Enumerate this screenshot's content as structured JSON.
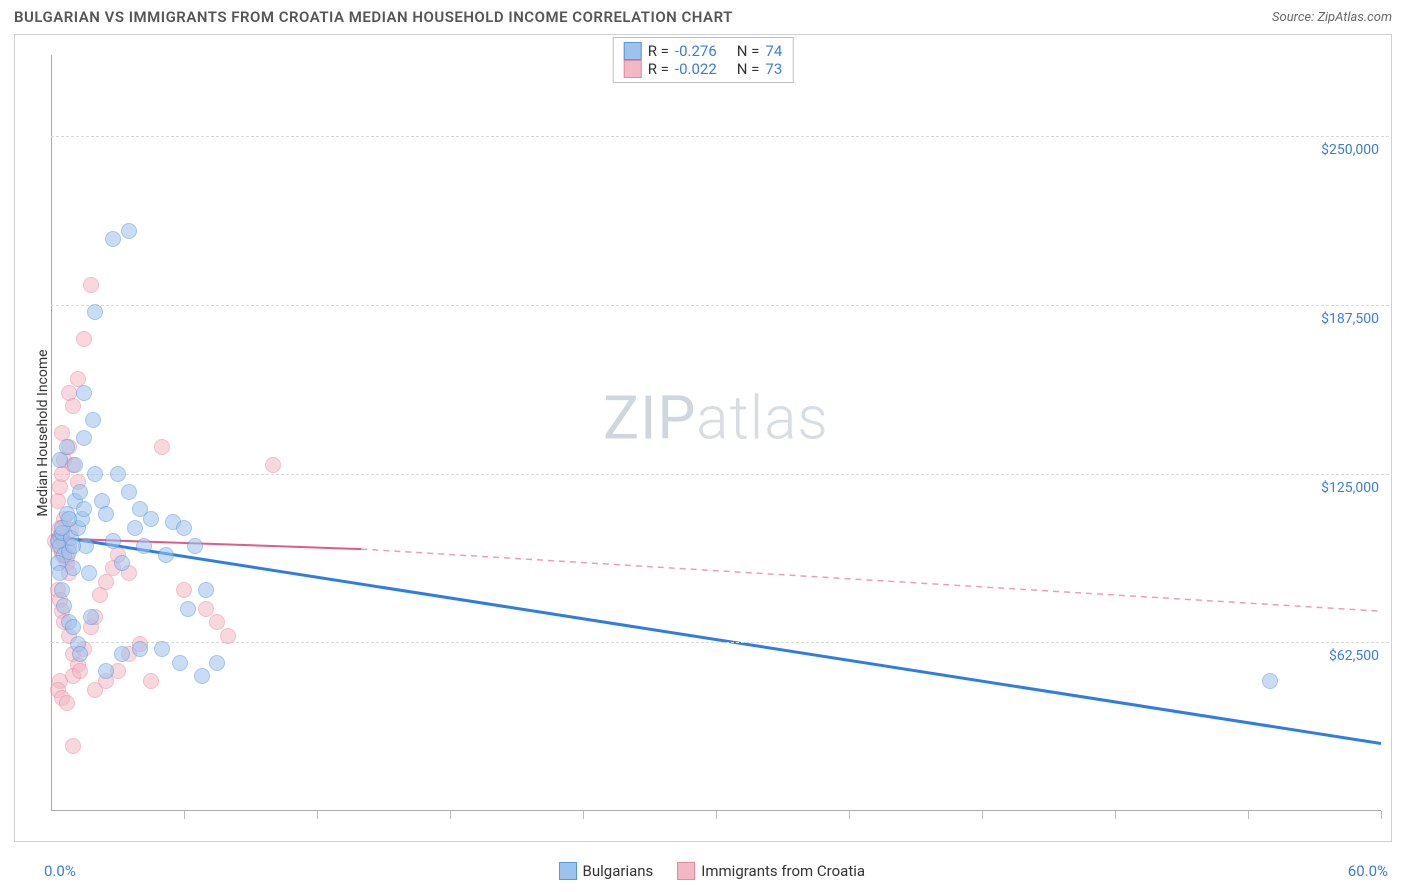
{
  "header": {
    "title": "BULGARIAN VS IMMIGRANTS FROM CROATIA MEDIAN HOUSEHOLD INCOME CORRELATION CHART",
    "source_prefix": "Source: ",
    "source": "ZipAtlas.com"
  },
  "watermark": {
    "part1": "ZIP",
    "part2": "atlas"
  },
  "chart": {
    "type": "scatter",
    "ylabel": "Median Household Income",
    "xlim": [
      0,
      60
    ],
    "ylim": [
      0,
      280000
    ],
    "x_left_label": "0.0%",
    "x_right_label": "60.0%",
    "xticks": [
      0,
      6,
      12,
      18,
      24,
      30,
      36,
      42,
      48,
      54,
      60
    ],
    "y_gridlines": [
      {
        "value": 62500,
        "label": "$62,500"
      },
      {
        "value": 125000,
        "label": "$125,000"
      },
      {
        "value": 187500,
        "label": "$187,500"
      },
      {
        "value": 250000,
        "label": "$250,000"
      }
    ],
    "grid_color": "#d8d8d8",
    "background_color": "#ffffff",
    "marker_radius": 8,
    "marker_opacity": 0.55
  },
  "series": {
    "blue": {
      "label": "Bulgarians",
      "fill": "#9cc3ee",
      "stroke": "#5a96d8",
      "r_label": "R =",
      "r_value": "-0.276",
      "n_label": "N =",
      "n_value": "74",
      "trend": {
        "x1": 0,
        "y1": 102000,
        "x2": 60,
        "y2": 25000,
        "color": "#2f7de1",
        "width": 3
      },
      "points": [
        [
          0.3,
          100000
        ],
        [
          0.4,
          98000
        ],
        [
          0.5,
          103000
        ],
        [
          0.6,
          95000
        ],
        [
          0.7,
          110000
        ],
        [
          0.8,
          96000
        ],
        [
          0.9,
          101000
        ],
        [
          1.0,
          90000
        ],
        [
          1.1,
          115000
        ],
        [
          1.2,
          105000
        ],
        [
          1.3,
          118000
        ],
        [
          1.4,
          108000
        ],
        [
          1.5,
          112000
        ],
        [
          1.6,
          98000
        ],
        [
          1.7,
          88000
        ],
        [
          1.8,
          72000
        ],
        [
          1.9,
          145000
        ],
        [
          2.0,
          125000
        ],
        [
          0.5,
          82000
        ],
        [
          0.6,
          76000
        ],
        [
          0.8,
          70000
        ],
        [
          1.0,
          68000
        ],
        [
          1.2,
          62000
        ],
        [
          1.3,
          58000
        ],
        [
          0.4,
          130000
        ],
        [
          0.7,
          135000
        ],
        [
          1.1,
          128000
        ],
        [
          1.5,
          138000
        ],
        [
          2.3,
          115000
        ],
        [
          2.5,
          110000
        ],
        [
          2.8,
          100000
        ],
        [
          3.2,
          92000
        ],
        [
          3.0,
          125000
        ],
        [
          3.5,
          118000
        ],
        [
          3.8,
          105000
        ],
        [
          4.2,
          98000
        ],
        [
          4.0,
          112000
        ],
        [
          4.5,
          108000
        ],
        [
          5.2,
          95000
        ],
        [
          5.5,
          107000
        ],
        [
          6.0,
          105000
        ],
        [
          6.5,
          98000
        ],
        [
          7.0,
          82000
        ],
        [
          6.2,
          75000
        ],
        [
          5.0,
          60000
        ],
        [
          5.8,
          55000
        ],
        [
          6.8,
          50000
        ],
        [
          7.5,
          55000
        ],
        [
          3.2,
          58000
        ],
        [
          4.0,
          60000
        ],
        [
          2.5,
          52000
        ],
        [
          1.5,
          155000
        ],
        [
          2.0,
          185000
        ],
        [
          3.5,
          215000
        ],
        [
          2.8,
          212000
        ],
        [
          0.5,
          105000
        ],
        [
          0.8,
          108000
        ],
        [
          1.0,
          98000
        ],
        [
          0.3,
          92000
        ],
        [
          0.4,
          88000
        ],
        [
          55.0,
          48000
        ]
      ]
    },
    "pink": {
      "label": "Immigrants from Croatia",
      "fill": "#f4b8c4",
      "stroke": "#e68aa0",
      "r_label": "R =",
      "r_value": "-0.022",
      "n_label": "N =",
      "n_value": "73",
      "trend_solid": {
        "x1": 0,
        "y1": 101000,
        "x2": 14,
        "y2": 97000,
        "color": "#e05a8a",
        "width": 2
      },
      "trend_dashed": {
        "x1": 14,
        "y1": 97000,
        "x2": 60,
        "y2": 74000,
        "color": "#e8a0b8",
        "width": 1.5
      },
      "points": [
        [
          0.2,
          100000
        ],
        [
          0.3,
          98000
        ],
        [
          0.4,
          102000
        ],
        [
          0.5,
          95000
        ],
        [
          0.6,
          108000
        ],
        [
          0.7,
          92000
        ],
        [
          0.8,
          88000
        ],
        [
          0.9,
          104000
        ],
        [
          0.3,
          115000
        ],
        [
          0.4,
          120000
        ],
        [
          0.5,
          125000
        ],
        [
          0.6,
          130000
        ],
        [
          0.8,
          135000
        ],
        [
          1.0,
          128000
        ],
        [
          1.2,
          122000
        ],
        [
          0.5,
          140000
        ],
        [
          0.3,
          82000
        ],
        [
          0.4,
          78000
        ],
        [
          0.5,
          74000
        ],
        [
          0.6,
          70000
        ],
        [
          0.8,
          65000
        ],
        [
          1.0,
          58000
        ],
        [
          1.2,
          54000
        ],
        [
          0.4,
          48000
        ],
        [
          0.3,
          45000
        ],
        [
          0.5,
          42000
        ],
        [
          0.7,
          40000
        ],
        [
          1.0,
          50000
        ],
        [
          1.3,
          52000
        ],
        [
          1.5,
          60000
        ],
        [
          1.8,
          68000
        ],
        [
          2.0,
          72000
        ],
        [
          2.2,
          80000
        ],
        [
          2.5,
          85000
        ],
        [
          2.8,
          90000
        ],
        [
          3.0,
          95000
        ],
        [
          3.5,
          88000
        ],
        [
          1.5,
          175000
        ],
        [
          1.2,
          160000
        ],
        [
          0.8,
          155000
        ],
        [
          1.0,
          150000
        ],
        [
          2.0,
          45000
        ],
        [
          2.5,
          48000
        ],
        [
          3.0,
          52000
        ],
        [
          3.5,
          58000
        ],
        [
          4.0,
          62000
        ],
        [
          4.5,
          48000
        ],
        [
          5.0,
          135000
        ],
        [
          6.0,
          82000
        ],
        [
          7.0,
          75000
        ],
        [
          7.5,
          70000
        ],
        [
          8.0,
          65000
        ],
        [
          10.0,
          128000
        ],
        [
          1.8,
          195000
        ],
        [
          1.0,
          24000
        ],
        [
          0.4,
          105000
        ],
        [
          0.6,
          100000
        ],
        [
          0.8,
          98000
        ],
        [
          0.5,
          96000
        ],
        [
          0.7,
          94000
        ]
      ]
    }
  }
}
